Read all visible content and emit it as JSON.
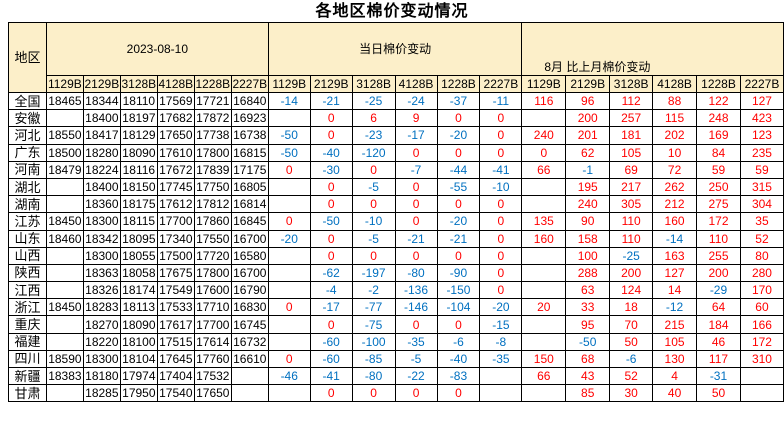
{
  "title": "各地区棉价变动情况",
  "header": {
    "region_label": "地区",
    "groups": [
      {
        "label": "2023-08-10",
        "cols": [
          "1129B",
          "2129B",
          "3128B",
          "4128B",
          "1228B",
          "2227B"
        ]
      },
      {
        "label": "当日棉价变动",
        "cols": [
          "1129B",
          "2129B",
          "3128B",
          "4128B",
          "1228B",
          "2227B"
        ]
      },
      {
        "label": "8月 比上月棉价变动",
        "cols": [
          "1129B",
          "2129B",
          "3128B",
          "4128B",
          "1228B",
          "2227B"
        ]
      }
    ]
  },
  "rows": [
    {
      "region": "全国",
      "prices": [
        "18465",
        "18344",
        "18110",
        "17569",
        "17721",
        "16840"
      ],
      "daily": [
        "-14",
        "-21",
        "-25",
        "-24",
        "-37",
        "-11"
      ],
      "monthly": [
        "116",
        "96",
        "112",
        "88",
        "122",
        "127"
      ]
    },
    {
      "region": "安徽",
      "prices": [
        "",
        "18400",
        "18197",
        "17682",
        "17872",
        "16923"
      ],
      "daily": [
        "",
        "0",
        "6",
        "9",
        "0",
        "0"
      ],
      "monthly": [
        "",
        "200",
        "257",
        "115",
        "248",
        "423"
      ]
    },
    {
      "region": "河北",
      "prices": [
        "18550",
        "18417",
        "18129",
        "17650",
        "17738",
        "16738"
      ],
      "daily": [
        "-50",
        "0",
        "-23",
        "-17",
        "-20",
        "0"
      ],
      "monthly": [
        "240",
        "201",
        "181",
        "202",
        "169",
        "123"
      ]
    },
    {
      "region": "广东",
      "prices": [
        "18500",
        "18280",
        "18090",
        "17610",
        "17800",
        "16815"
      ],
      "daily": [
        "-50",
        "-40",
        "-120",
        "0",
        "0",
        "0"
      ],
      "monthly": [
        "0",
        "62",
        "105",
        "10",
        "84",
        "235"
      ]
    },
    {
      "region": "河南",
      "prices": [
        "18479",
        "18224",
        "18116",
        "17672",
        "17839",
        "17175"
      ],
      "daily": [
        "0",
        "-30",
        "0",
        "-7",
        "-44",
        "-41"
      ],
      "monthly": [
        "66",
        "-1",
        "69",
        "72",
        "59",
        "59"
      ]
    },
    {
      "region": "湖北",
      "prices": [
        "",
        "18400",
        "18150",
        "17745",
        "17750",
        "16805"
      ],
      "daily": [
        "",
        "0",
        "-5",
        "0",
        "-55",
        "-10"
      ],
      "monthly": [
        "",
        "195",
        "217",
        "262",
        "250",
        "315"
      ]
    },
    {
      "region": "湖南",
      "prices": [
        "",
        "18360",
        "18175",
        "17612",
        "17812",
        "16814"
      ],
      "daily": [
        "",
        "0",
        "0",
        "0",
        "0",
        "0"
      ],
      "monthly": [
        "",
        "240",
        "305",
        "212",
        "275",
        "304"
      ]
    },
    {
      "region": "江苏",
      "prices": [
        "18450",
        "18300",
        "18115",
        "17700",
        "17860",
        "16845"
      ],
      "daily": [
        "0",
        "-50",
        "-10",
        "0",
        "-20",
        "0"
      ],
      "monthly": [
        "135",
        "90",
        "110",
        "160",
        "172",
        "35"
      ]
    },
    {
      "region": "山东",
      "prices": [
        "18460",
        "18342",
        "18095",
        "17340",
        "17550",
        "16700"
      ],
      "daily": [
        "-20",
        "0",
        "-5",
        "-21",
        "-21",
        "0"
      ],
      "monthly": [
        "160",
        "158",
        "110",
        "-14",
        "110",
        "52"
      ]
    },
    {
      "region": "山西",
      "prices": [
        "",
        "18300",
        "18055",
        "17500",
        "17720",
        "16580"
      ],
      "daily": [
        "",
        "0",
        "0",
        "0",
        "0",
        "0"
      ],
      "monthly": [
        "",
        "100",
        "-25",
        "163",
        "255",
        "80"
      ]
    },
    {
      "region": "陕西",
      "prices": [
        "",
        "18363",
        "18058",
        "17675",
        "17800",
        "16700"
      ],
      "daily": [
        "",
        "-62",
        "-197",
        "-80",
        "-90",
        "0"
      ],
      "monthly": [
        "",
        "288",
        "200",
        "127",
        "200",
        "280"
      ]
    },
    {
      "region": "江西",
      "prices": [
        "",
        "18326",
        "18174",
        "17549",
        "17600",
        "16790"
      ],
      "daily": [
        "",
        "-4",
        "-2",
        "-136",
        "-150",
        "0"
      ],
      "monthly": [
        "",
        "63",
        "124",
        "14",
        "-29",
        "170"
      ]
    },
    {
      "region": "浙江",
      "prices": [
        "18450",
        "18283",
        "18113",
        "17533",
        "17710",
        "16830"
      ],
      "daily": [
        "0",
        "-17",
        "-77",
        "-146",
        "-104",
        "-20"
      ],
      "monthly": [
        "20",
        "33",
        "18",
        "-12",
        "64",
        "60"
      ]
    },
    {
      "region": "重庆",
      "prices": [
        "",
        "18270",
        "18090",
        "17617",
        "17700",
        "16745"
      ],
      "daily": [
        "",
        "0",
        "-75",
        "0",
        "0",
        "-15"
      ],
      "monthly": [
        "",
        "95",
        "70",
        "215",
        "184",
        "166"
      ]
    },
    {
      "region": "福建",
      "prices": [
        "",
        "18220",
        "18100",
        "17515",
        "17614",
        "16732"
      ],
      "daily": [
        "",
        "-60",
        "-100",
        "-35",
        "-6",
        "-8"
      ],
      "monthly": [
        "",
        "-50",
        "50",
        "105",
        "46",
        "172"
      ]
    },
    {
      "region": "四川",
      "prices": [
        "18590",
        "18300",
        "18104",
        "17645",
        "17760",
        "16610"
      ],
      "daily": [
        "0",
        "-60",
        "-85",
        "-5",
        "-40",
        "-35"
      ],
      "monthly": [
        "150",
        "68",
        "-6",
        "130",
        "117",
        "310"
      ]
    },
    {
      "region": "新疆",
      "prices": [
        "18383",
        "18180",
        "17974",
        "17404",
        "17532",
        ""
      ],
      "daily": [
        "-46",
        "-41",
        "-80",
        "-22",
        "-83",
        ""
      ],
      "monthly": [
        "66",
        "43",
        "52",
        "4",
        "-31",
        ""
      ]
    },
    {
      "region": "甘肃",
      "prices": [
        "",
        "18285",
        "17950",
        "17540",
        "17650",
        ""
      ],
      "daily": [
        "",
        "0",
        "0",
        "0",
        "0",
        ""
      ],
      "monthly": [
        "",
        "85",
        "30",
        "40",
        "50",
        ""
      ]
    }
  ],
  "colors": {
    "negative": "#0070C0",
    "nonnegative": "#FF0000",
    "price_text": "#000000",
    "header_bg": "#FCEFC9",
    "border": "#000000"
  }
}
